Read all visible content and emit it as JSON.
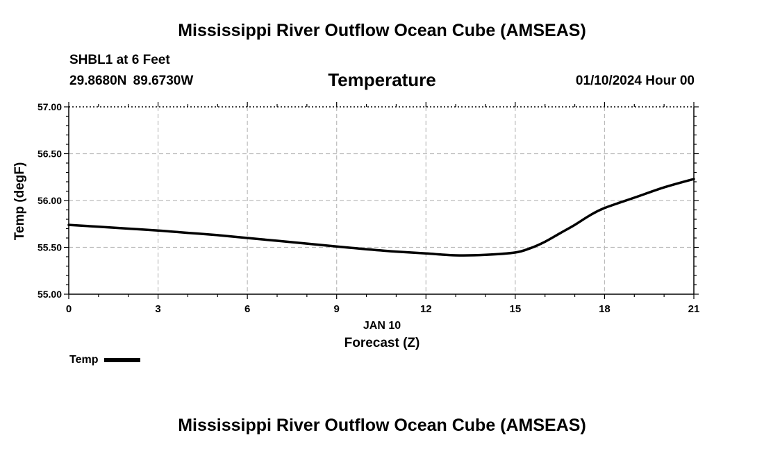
{
  "header": {
    "title": "Mississippi River Outflow Ocean Cube (AMSEAS)",
    "station": "SHBL1 at 6 Feet",
    "coordinates": "29.8680N  89.6730W",
    "variable": "Temperature",
    "datetime": "01/10/2024 Hour 00"
  },
  "footer": {
    "title": "Mississippi River Outflow Ocean Cube (AMSEAS)"
  },
  "legend": {
    "label": "Temp"
  },
  "chart_data": {
    "type": "line",
    "title": "Temperature",
    "xlabel": "Forecast (Z)",
    "xdate": "JAN 10",
    "ylabel": "Temp (degF)",
    "xlim": [
      0,
      21
    ],
    "ylim": [
      55.0,
      57.0
    ],
    "xticks": [
      0,
      3,
      6,
      9,
      12,
      15,
      18,
      21
    ],
    "yticks": [
      "55.00",
      "55.50",
      "56.00",
      "56.50",
      "57.00"
    ],
    "grid": true,
    "series": [
      {
        "name": "Temp",
        "color": "#000000",
        "x": [
          0,
          1,
          2,
          3,
          4,
          5,
          6,
          7,
          8,
          9,
          10,
          11,
          12,
          13,
          14,
          15,
          15.5,
          16,
          16.5,
          17,
          17.5,
          18,
          19,
          20,
          21
        ],
        "values": [
          55.74,
          55.72,
          55.7,
          55.68,
          55.655,
          55.63,
          55.6,
          55.57,
          55.54,
          55.51,
          55.48,
          55.455,
          55.435,
          55.415,
          55.42,
          55.445,
          55.49,
          55.56,
          55.65,
          55.74,
          55.84,
          55.92,
          56.03,
          56.14,
          56.23
        ]
      }
    ]
  }
}
